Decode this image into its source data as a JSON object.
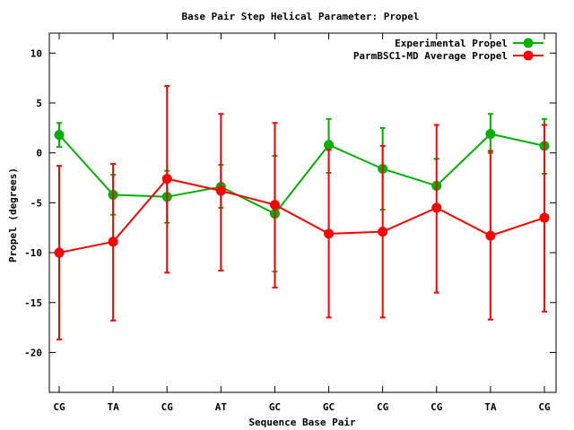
{
  "chart_data": {
    "type": "line",
    "title": "Base Pair Step Helical Parameter: Propel",
    "xlabel": "Sequence Base Pair",
    "ylabel": "Propel (degrees)",
    "categories": [
      "CG",
      "TA",
      "CG",
      "AT",
      "GC",
      "GC",
      "CG",
      "CG",
      "TA",
      "CG"
    ],
    "ylim": [
      -24,
      12
    ],
    "yticks": [
      -20,
      -15,
      -10,
      -5,
      0,
      5,
      10
    ],
    "ytick_labels": [
      "-20",
      "-15",
      "-10",
      "-5",
      "0",
      "5",
      "10"
    ],
    "legend_position": "top-right",
    "grid": false,
    "series": [
      {
        "name": "Experimental Propel",
        "color": "#00b000",
        "values": [
          1.8,
          -4.2,
          -4.4,
          -3.4,
          -6.1,
          0.8,
          -1.6,
          -3.3,
          1.9,
          0.7
        ],
        "err_low": [
          0.6,
          -6.2,
          -7.0,
          -5.5,
          -11.9,
          -2.0,
          -5.7,
          -0.6,
          0.0,
          -2.1
        ],
        "err_high": [
          3.0,
          -2.2,
          -1.8,
          -1.2,
          -0.3,
          3.4,
          2.5,
          -0.6,
          3.9,
          3.4
        ]
      },
      {
        "name": "ParmBSC1-MD Average Propel",
        "color": "#ff0000",
        "values": [
          -10.0,
          -8.9,
          -2.6,
          -3.8,
          -5.2,
          -8.1,
          -7.9,
          -5.5,
          -8.3,
          -6.5
        ],
        "err_low": [
          -18.7,
          -16.8,
          -12.0,
          -11.8,
          -13.5,
          -16.5,
          -16.5,
          -14.0,
          -16.7,
          -15.9
        ],
        "err_high": [
          -1.3,
          -1.1,
          6.7,
          3.9,
          3.0,
          0.3,
          0.7,
          2.8,
          0.2,
          2.8
        ]
      }
    ]
  }
}
